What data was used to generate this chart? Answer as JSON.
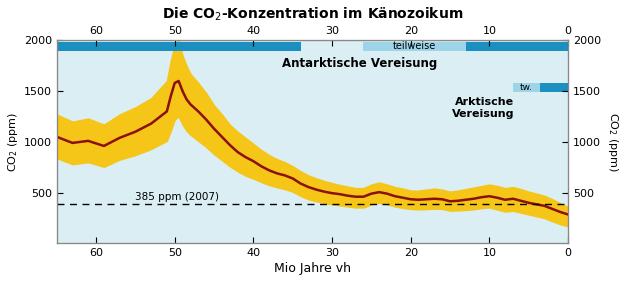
{
  "title": "Die CO$_2$-Konzentration im Känozoikum",
  "xlabel": "Mio Jahre vh",
  "ylabel_left": "CO$_2$ (ppm)",
  "ylabel_right": "CO$_2$ (ppm)",
  "xlim": [
    65,
    0
  ],
  "ylim": [
    0,
    2000
  ],
  "yticks": [
    500,
    1000,
    1500,
    2000
  ],
  "xticks_bottom": [
    60,
    50,
    40,
    30,
    20,
    10,
    0
  ],
  "xticks_top": [
    60,
    50,
    40,
    30,
    20,
    10,
    0
  ],
  "dashed_line_y": 385,
  "dashed_line_label": "385 ppm (2007)",
  "background_color": "#daeef3",
  "fill_color": "#f5c518",
  "line_color": "#8b1010",
  "bar_dark_color": "#1a8fc0",
  "bar_light_color": "#9dd4e8",
  "antarktis_label": "Antarktische Vereisung",
  "antarktis_teilweise": "teilweise",
  "arktis_label_line1": "Arktische",
  "arktis_label_line2": "Vereisung",
  "arktis_tw": "tw.",
  "ant_dark1_xstart": 34,
  "ant_dark1_xend": 65,
  "ant_light_xstart": 13,
  "ant_light_xend": 26,
  "ant_dark2_xstart": 0,
  "ant_dark2_xend": 13,
  "ark_light_xstart": 3.5,
  "ark_light_xend": 7,
  "ark_dark_xstart": 0,
  "ark_dark_xend": 3.5,
  "curve_x": [
    65,
    63,
    61,
    59,
    57,
    55,
    53,
    51,
    50.5,
    50,
    49.5,
    49,
    48.5,
    48,
    47,
    46,
    45,
    44,
    43,
    42,
    41,
    40,
    39,
    38,
    37,
    36,
    35,
    34,
    33,
    32,
    31,
    30,
    29,
    28,
    27,
    26,
    25,
    24,
    23,
    22,
    21,
    20,
    19,
    18,
    17,
    16,
    15,
    14,
    13,
    12,
    11,
    10,
    9,
    8,
    7,
    6,
    5,
    4,
    3,
    2,
    1,
    0
  ],
  "curve_y": [
    1050,
    990,
    1010,
    960,
    1040,
    1100,
    1180,
    1300,
    1450,
    1580,
    1600,
    1500,
    1420,
    1370,
    1300,
    1220,
    1130,
    1050,
    970,
    900,
    850,
    810,
    760,
    720,
    690,
    670,
    640,
    590,
    555,
    530,
    510,
    495,
    485,
    470,
    460,
    460,
    490,
    505,
    490,
    465,
    450,
    435,
    430,
    435,
    440,
    435,
    415,
    420,
    430,
    440,
    455,
    465,
    450,
    430,
    440,
    420,
    400,
    385,
    370,
    340,
    310,
    285
  ],
  "upper_y": [
    1270,
    1200,
    1230,
    1170,
    1270,
    1340,
    1430,
    1600,
    1800,
    1960,
    2000,
    1850,
    1750,
    1670,
    1580,
    1480,
    1360,
    1270,
    1170,
    1100,
    1040,
    980,
    920,
    870,
    830,
    800,
    760,
    710,
    670,
    640,
    615,
    595,
    575,
    560,
    545,
    545,
    580,
    600,
    580,
    555,
    540,
    520,
    520,
    530,
    540,
    530,
    510,
    520,
    535,
    550,
    565,
    580,
    565,
    545,
    555,
    535,
    510,
    490,
    470,
    435,
    395,
    360
  ],
  "lower_y": [
    840,
    780,
    800,
    755,
    825,
    870,
    930,
    1010,
    1110,
    1220,
    1250,
    1170,
    1110,
    1070,
    1010,
    950,
    880,
    820,
    760,
    710,
    668,
    638,
    605,
    575,
    553,
    535,
    510,
    468,
    435,
    415,
    398,
    385,
    375,
    364,
    354,
    354,
    385,
    400,
    385,
    364,
    350,
    340,
    335,
    338,
    343,
    340,
    323,
    325,
    330,
    336,
    348,
    355,
    334,
    314,
    322,
    303,
    285,
    268,
    250,
    218,
    190,
    168
  ]
}
